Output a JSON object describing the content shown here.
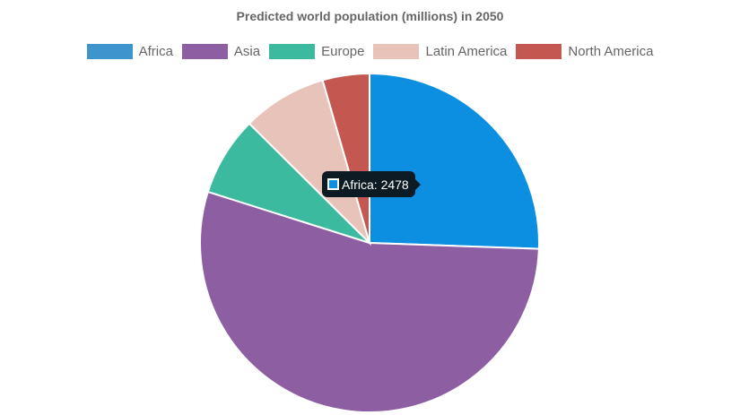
{
  "chart_data": {
    "type": "pie",
    "title": "Predicted world population (millions) in 2050",
    "categories": [
      "Africa",
      "Asia",
      "Europe",
      "Latin America",
      "North America"
    ],
    "values": [
      2478,
      5267,
      734,
      784,
      433
    ],
    "colors": [
      "#0c8fe0",
      "#8e5ea2",
      "#3cba9f",
      "#e8c3b9",
      "#c45850"
    ],
    "legend_colors": [
      "#3e95cd",
      "#8e5ea2",
      "#3cba9f",
      "#e8c3b9",
      "#c45850"
    ],
    "legend_position": "top",
    "start_angle": "top, clockwise"
  },
  "tooltip": {
    "label": "Africa: 2478",
    "color": "#0c8fe0"
  }
}
